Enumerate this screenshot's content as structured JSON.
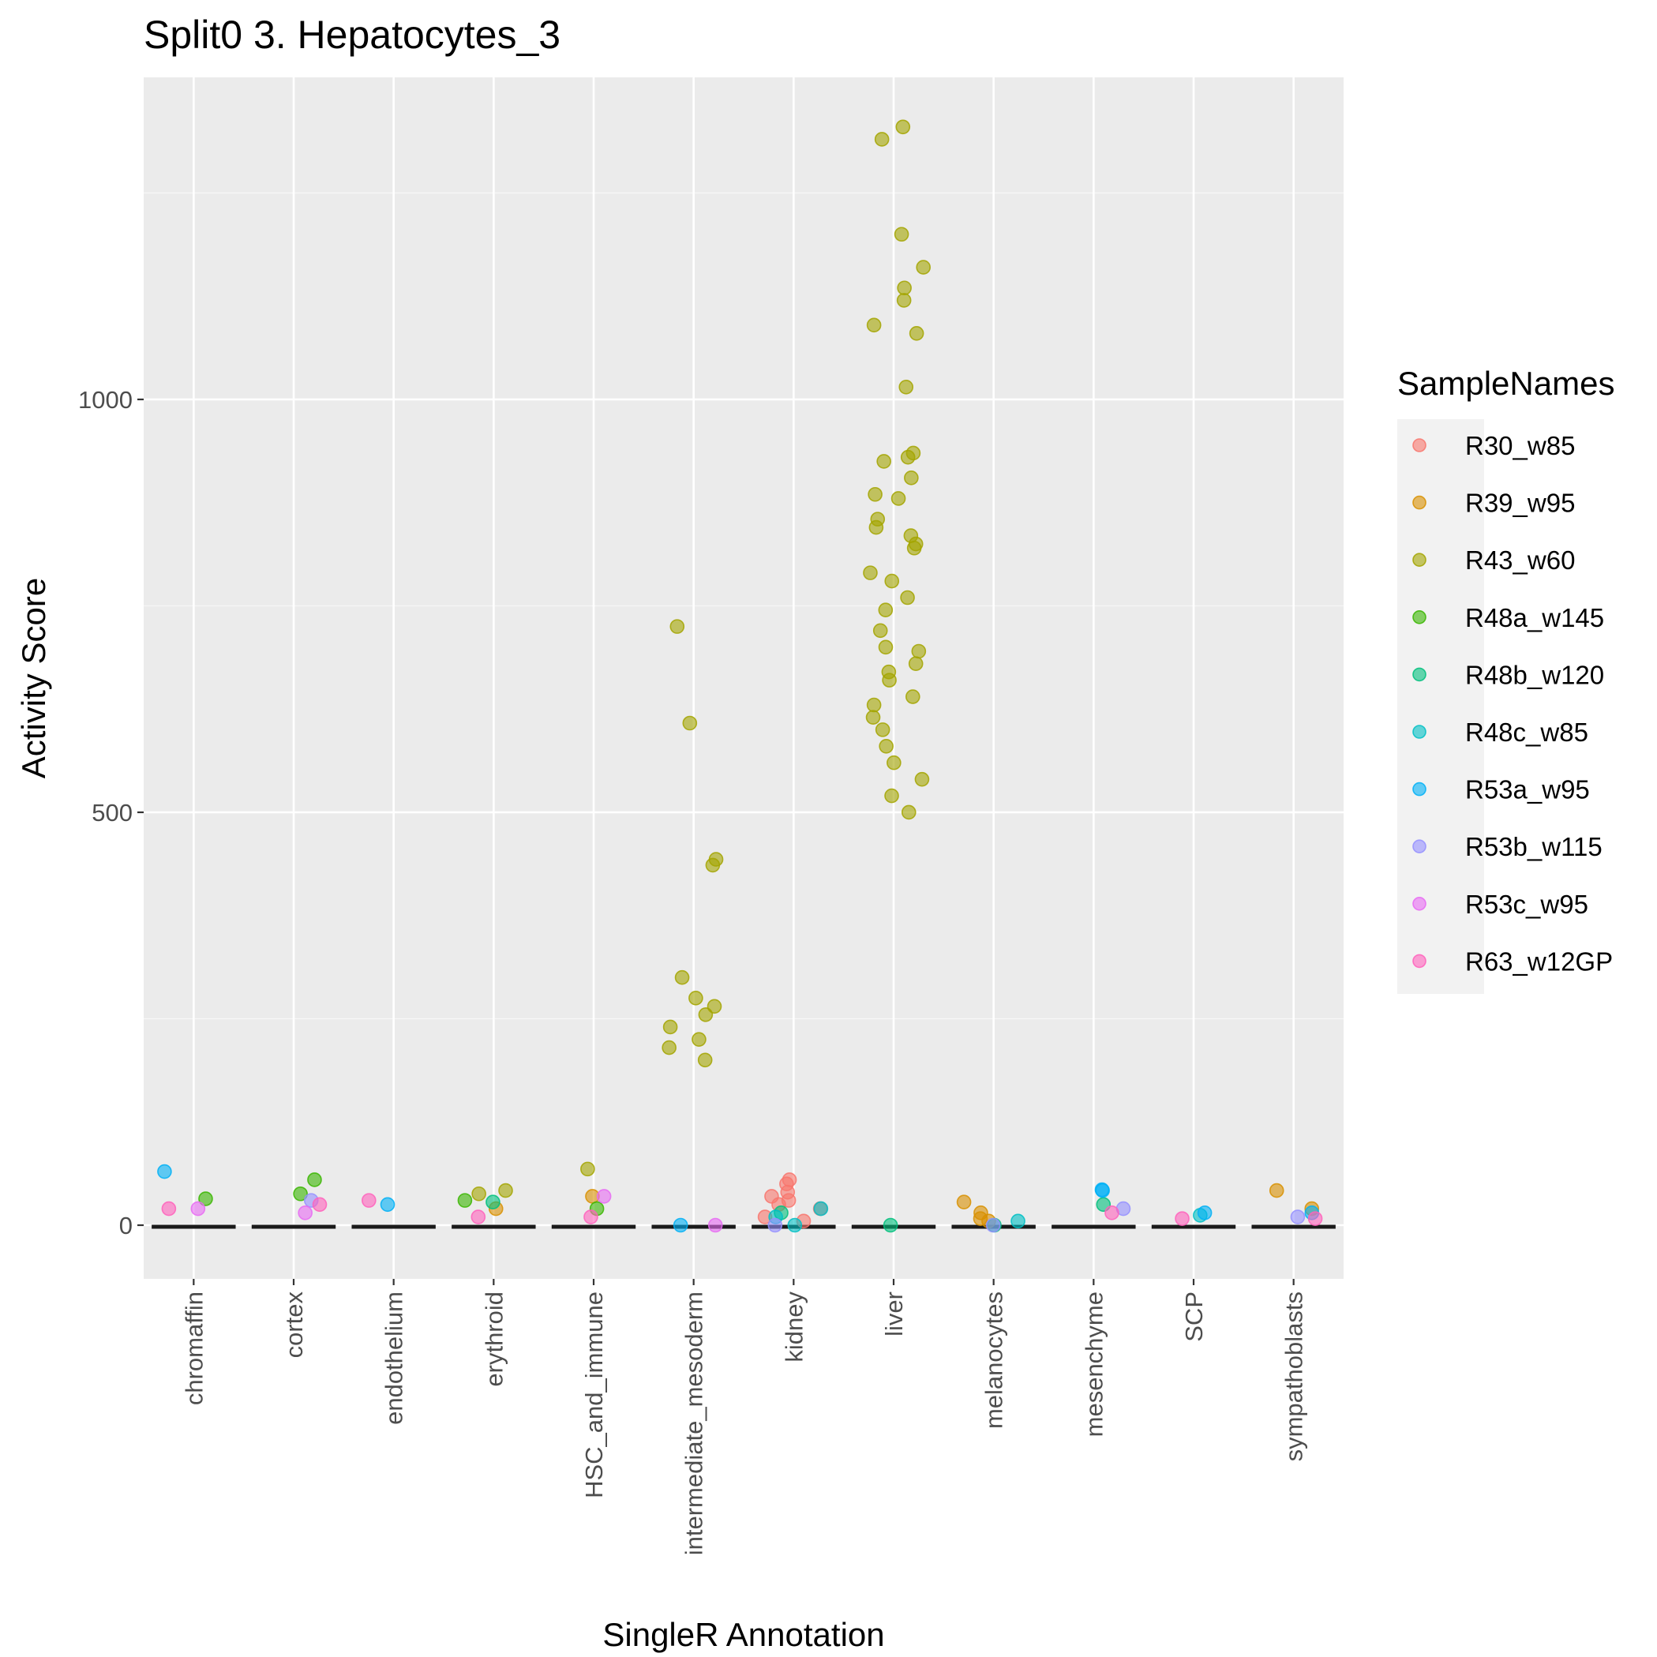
{
  "chart_data": {
    "type": "scatter",
    "title": "Split0 3. Hepatocytes_3",
    "xlabel": "SingleR Annotation",
    "ylabel": "Activity Score",
    "categories": [
      "chromaffin",
      "cortex",
      "endothelium",
      "erythroid",
      "HSC_and_immune",
      "intermediate_mesoderm",
      "kidney",
      "liver",
      "melanocytes",
      "mesenchyme",
      "SCP",
      "sympathoblasts"
    ],
    "ylim": [
      -65,
      1390
    ],
    "yticks": [
      0,
      500,
      1000
    ],
    "ytick_labels": [
      "0",
      "500",
      "1000"
    ],
    "grid": true,
    "legend": {
      "title": "SampleNames",
      "placement": "right",
      "entries": [
        {
          "name": "R30_w85",
          "color": "#F8766D"
        },
        {
          "name": "R39_w95",
          "color": "#D89000"
        },
        {
          "name": "R43_w60",
          "color": "#A3A500"
        },
        {
          "name": "R48a_w145",
          "color": "#39B600"
        },
        {
          "name": "R48b_w120",
          "color": "#00BF7D"
        },
        {
          "name": "R48c_w85",
          "color": "#00BFC4"
        },
        {
          "name": "R53a_w95",
          "color": "#00B0F6"
        },
        {
          "name": "R53b_w115",
          "color": "#9590FF"
        },
        {
          "name": "R53c_w95",
          "color": "#E76BF3"
        },
        {
          "name": "R63_w12GP",
          "color": "#FF62BC"
        }
      ]
    },
    "series": [
      {
        "name": "R30_w85",
        "points": [
          [
            "kidney",
            50
          ],
          [
            "kidney",
            40
          ],
          [
            "kidney",
            30
          ],
          [
            "kidney",
            20
          ],
          [
            "kidney",
            55
          ],
          [
            "kidney",
            10
          ],
          [
            "kidney",
            25
          ],
          [
            "kidney",
            35
          ],
          [
            "kidney",
            5
          ]
        ]
      },
      {
        "name": "R39_w95",
        "points": [
          [
            "melanocytes",
            28
          ],
          [
            "melanocytes",
            15
          ],
          [
            "melanocytes",
            8
          ],
          [
            "melanocytes",
            5
          ],
          [
            "sympathoblasts",
            42
          ],
          [
            "sympathoblasts",
            20
          ],
          [
            "HSC_and_immune",
            35
          ],
          [
            "erythroid",
            20
          ]
        ]
      },
      {
        "name": "R43_w60",
        "points": [
          [
            "liver",
            1330
          ],
          [
            "liver",
            1315
          ],
          [
            "liver",
            1200
          ],
          [
            "liver",
            1160
          ],
          [
            "liver",
            1135
          ],
          [
            "liver",
            1120
          ],
          [
            "liver",
            1090
          ],
          [
            "liver",
            1080
          ],
          [
            "liver",
            1015
          ],
          [
            "liver",
            935
          ],
          [
            "liver",
            930
          ],
          [
            "liver",
            925
          ],
          [
            "liver",
            905
          ],
          [
            "liver",
            885
          ],
          [
            "liver",
            880
          ],
          [
            "liver",
            855
          ],
          [
            "liver",
            845
          ],
          [
            "liver",
            835
          ],
          [
            "liver",
            825
          ],
          [
            "liver",
            820
          ],
          [
            "liver",
            790
          ],
          [
            "liver",
            780
          ],
          [
            "liver",
            760
          ],
          [
            "liver",
            745
          ],
          [
            "liver",
            720
          ],
          [
            "liver",
            700
          ],
          [
            "liver",
            695
          ],
          [
            "liver",
            680
          ],
          [
            "liver",
            670
          ],
          [
            "liver",
            660
          ],
          [
            "liver",
            640
          ],
          [
            "liver",
            630
          ],
          [
            "liver",
            615
          ],
          [
            "liver",
            600
          ],
          [
            "liver",
            580
          ],
          [
            "liver",
            560
          ],
          [
            "liver",
            540
          ],
          [
            "liver",
            520
          ],
          [
            "liver",
            500
          ],
          [
            "intermediate_mesoderm",
            725
          ],
          [
            "intermediate_mesoderm",
            608
          ],
          [
            "intermediate_mesoderm",
            443
          ],
          [
            "intermediate_mesoderm",
            436
          ],
          [
            "intermediate_mesoderm",
            300
          ],
          [
            "intermediate_mesoderm",
            275
          ],
          [
            "intermediate_mesoderm",
            265
          ],
          [
            "intermediate_mesoderm",
            255
          ],
          [
            "intermediate_mesoderm",
            240
          ],
          [
            "intermediate_mesoderm",
            225
          ],
          [
            "intermediate_mesoderm",
            215
          ],
          [
            "intermediate_mesoderm",
            200
          ],
          [
            "HSC_and_immune",
            68
          ],
          [
            "erythroid",
            42
          ],
          [
            "erythroid",
            38
          ]
        ]
      },
      {
        "name": "R48a_w145",
        "points": [
          [
            "cortex",
            55
          ],
          [
            "cortex",
            38
          ],
          [
            "chromaffin",
            32
          ],
          [
            "erythroid",
            30
          ],
          [
            "HSC_and_immune",
            20
          ]
        ]
      },
      {
        "name": "R48b_w120",
        "points": [
          [
            "liver",
            0
          ],
          [
            "melanocytes",
            0
          ],
          [
            "mesenchyme",
            25
          ],
          [
            "kidney",
            15
          ],
          [
            "erythroid",
            28
          ]
        ]
      },
      {
        "name": "R48c_w85",
        "points": [
          [
            "kidney",
            20
          ],
          [
            "kidney",
            10
          ],
          [
            "kidney",
            0
          ],
          [
            "melanocytes",
            5
          ],
          [
            "SCP",
            12
          ]
        ]
      },
      {
        "name": "R53a_w95",
        "points": [
          [
            "chromaffin",
            65
          ],
          [
            "mesenchyme",
            43
          ],
          [
            "mesenchyme",
            42
          ],
          [
            "endothelium",
            25
          ],
          [
            "sympathoblasts",
            15
          ],
          [
            "SCP",
            15
          ],
          [
            "intermediate_mesoderm",
            0
          ]
        ]
      },
      {
        "name": "R53b_w115",
        "points": [
          [
            "cortex",
            30
          ],
          [
            "mesenchyme",
            20
          ],
          [
            "melanocytes",
            0
          ],
          [
            "kidney",
            0
          ],
          [
            "sympathoblasts",
            10
          ]
        ]
      },
      {
        "name": "R53c_w95",
        "points": [
          [
            "HSC_and_immune",
            35
          ],
          [
            "intermediate_mesoderm",
            0
          ],
          [
            "chromaffin",
            20
          ],
          [
            "cortex",
            15
          ]
        ]
      },
      {
        "name": "R63_w12GP",
        "points": [
          [
            "chromaffin",
            20
          ],
          [
            "cortex",
            25
          ],
          [
            "endothelium",
            30
          ],
          [
            "erythroid",
            10
          ],
          [
            "HSC_and_immune",
            10
          ],
          [
            "mesenchyme",
            15
          ],
          [
            "SCP",
            8
          ],
          [
            "sympathoblasts",
            8
          ]
        ]
      }
    ]
  }
}
